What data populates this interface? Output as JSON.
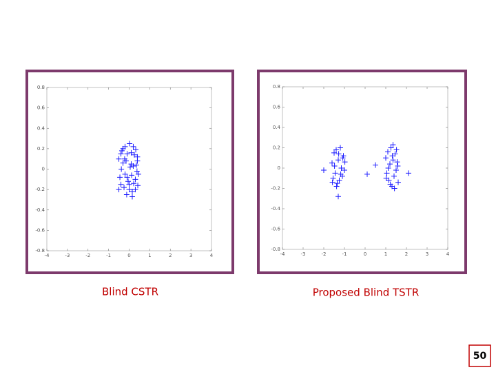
{
  "chart_data": [
    {
      "type": "scatter",
      "caption": "Blind CSTR",
      "marker": "+",
      "color": "#1a1aff",
      "x": [
        -0.5,
        -0.4,
        -0.3,
        -0.2,
        -0.1,
        0,
        0.1,
        0.2,
        0.3,
        0.4,
        -0.45,
        -0.35,
        -0.25,
        -0.15,
        -0.05,
        0.05,
        0.15,
        0.25,
        0.35,
        0.42,
        -0.5,
        -0.38,
        -0.22,
        -0.12,
        0.02,
        0.12,
        0.22,
        0.32,
        0.38,
        -0.3,
        -0.1,
        0.1,
        0.3,
        -0.2,
        0,
        0.2,
        0.4,
        -0.4,
        0.15,
        0.45
      ],
      "y": [
        0.1,
        -0.15,
        0.2,
        -0.05,
        0.15,
        -0.2,
        0.05,
        0.22,
        -0.1,
        0.12,
        -0.08,
        0.18,
        -0.18,
        0.08,
        -0.12,
        0.02,
        -0.22,
        0.14,
        0.04,
        -0.16,
        -0.2,
        0,
        0.1,
        -0.25,
        0.25,
        -0.06,
        -0.14,
        0.19,
        -0.02,
        0.06,
        -0.08,
        0.16,
        -0.2,
        0.22,
        -0.15,
        0.03,
        0.08,
        0.15,
        -0.27,
        -0.05
      ],
      "xlim": [
        -4,
        4
      ],
      "ylim": [
        -0.8,
        0.8
      ],
      "xticks": [
        -4,
        -3,
        -2,
        -1,
        0,
        1,
        2,
        3,
        4
      ],
      "yticks": [
        0.8,
        0.6,
        0.4,
        0.2,
        0,
        -0.2,
        -0.4,
        -0.6,
        -0.8
      ]
    },
    {
      "type": "scatter",
      "caption": "Proposed Blind TSTR",
      "marker": "+",
      "color": "#1a1aff",
      "x": [
        -1.6,
        -1.55,
        -1.5,
        -1.45,
        -1.4,
        -1.35,
        -1.3,
        -1.25,
        -1.2,
        -1.15,
        -1.1,
        -1.05,
        -1.0,
        -1.58,
        -1.48,
        -1.38,
        -1.28,
        -1.18,
        -1.08,
        -0.98,
        1.0,
        1.05,
        1.1,
        1.15,
        1.2,
        1.25,
        1.3,
        1.35,
        1.4,
        1.45,
        1.5,
        1.55,
        1.6,
        1.02,
        1.12,
        1.22,
        1.32,
        1.42,
        1.52,
        1.58,
        -2.0,
        -1.3,
        0.1,
        0.5,
        2.1,
        1.35
      ],
      "y": [
        0.05,
        -0.1,
        0.15,
        -0.05,
        0.18,
        -0.15,
        0.08,
        -0.12,
        0.2,
        0,
        -0.08,
        0.12,
        -0.02,
        -0.14,
        0.02,
        -0.18,
        0.14,
        -0.06,
        0.1,
        0.06,
        0.1,
        -0.05,
        0.16,
        -0.12,
        0.04,
        0.2,
        -0.18,
        0.08,
        -0.08,
        0.14,
        -0.02,
        0.06,
        -0.14,
        -0.1,
        0,
        -0.16,
        0.12,
        -0.2,
        0.18,
        0.02,
        -0.02,
        -0.28,
        -0.06,
        0.03,
        -0.05,
        0.23
      ],
      "xlim": [
        -4,
        4
      ],
      "ylim": [
        -0.8,
        0.8
      ],
      "xticks": [
        -4,
        -3,
        -2,
        -1,
        0,
        1,
        2,
        3,
        4
      ],
      "yticks": [
        0.8,
        0.6,
        0.4,
        0.2,
        0,
        -0.2,
        -0.4,
        -0.6,
        -0.8
      ]
    }
  ],
  "slide_number": "50"
}
